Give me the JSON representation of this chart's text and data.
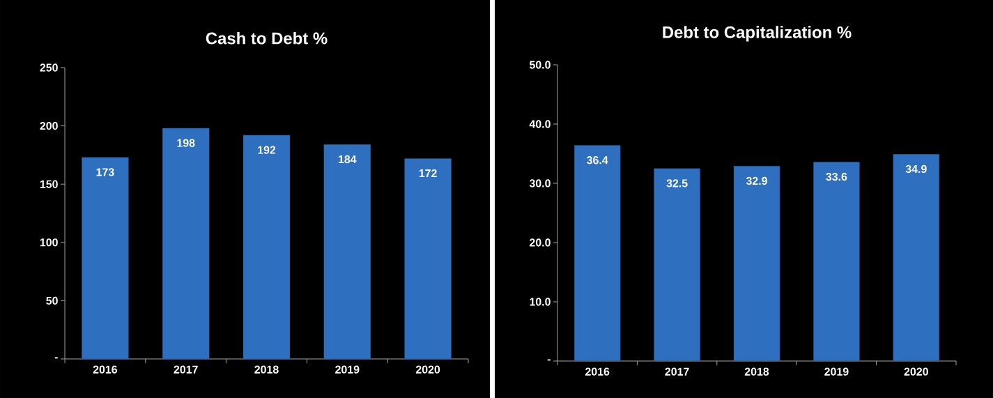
{
  "chart_data": [
    {
      "type": "bar",
      "title": "Cash to Debt %",
      "categories": [
        "2016",
        "2017",
        "2018",
        "2019",
        "2020"
      ],
      "values": [
        173,
        198,
        192,
        184,
        172
      ],
      "color": "#2f6fc0",
      "ylim": [
        0,
        250
      ],
      "yticks": [
        {
          "value": 0,
          "label": "-"
        },
        50,
        100,
        150,
        200,
        250
      ],
      "data_labels": true
    },
    {
      "type": "bar",
      "title": "Debt to Capitalization %",
      "categories": [
        "2016",
        "2017",
        "2018",
        "2019",
        "2020"
      ],
      "values": [
        36.4,
        32.5,
        32.9,
        33.6,
        34.9
      ],
      "color": "#2f6fc0",
      "ylim": [
        0,
        50
      ],
      "yticks": [
        {
          "value": 0,
          "label": "-"
        },
        {
          "value": 10,
          "label": "10.0"
        },
        {
          "value": 20,
          "label": "20.0"
        },
        {
          "value": 30,
          "label": "30.0"
        },
        {
          "value": 40,
          "label": "40.0"
        },
        {
          "value": 50,
          "label": "50.0"
        }
      ],
      "data_labels": true
    }
  ]
}
